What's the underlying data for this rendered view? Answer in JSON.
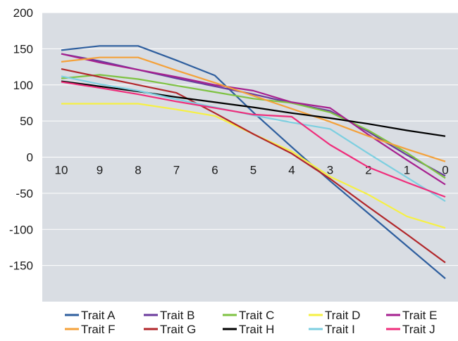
{
  "chart_data": {
    "type": "line",
    "title": "",
    "xlabel": "",
    "ylabel": "",
    "x": [
      10,
      9,
      8,
      7,
      6,
      5,
      4,
      3,
      2,
      1,
      0
    ],
    "ylim": [
      -200,
      200
    ],
    "yticks": [
      200,
      150,
      100,
      50,
      0,
      -50,
      -100,
      -150
    ],
    "grid": true,
    "background": "#d9dde3",
    "legend_position": "bottom",
    "series": [
      {
        "name": "Trait A",
        "color": "#2e5e9e",
        "values": [
          148,
          154,
          154,
          134,
          113,
          62,
          14,
          -33,
          -78,
          -123,
          -168
        ]
      },
      {
        "name": "Trait B",
        "color": "#6a3a9c",
        "values": [
          143,
          133,
          121,
          109,
          98,
          87,
          75,
          64,
          35,
          3,
          -26
        ]
      },
      {
        "name": "Trait C",
        "color": "#7ec242",
        "values": [
          109,
          114,
          108,
          99,
          90,
          81,
          75,
          62,
          37,
          6,
          -29
        ]
      },
      {
        "name": "Trait D",
        "color": "#f6f043",
        "values": [
          74,
          74,
          74,
          66,
          57,
          32,
          8,
          -27,
          -52,
          -82,
          -98
        ]
      },
      {
        "name": "Trait E",
        "color": "#a6208f",
        "values": [
          143,
          131,
          121,
          111,
          100,
          92,
          76,
          68,
          31,
          -4,
          -38
        ]
      },
      {
        "name": "Trait F",
        "color": "#f4a13a",
        "values": [
          132,
          138,
          138,
          120,
          103,
          85,
          67,
          49,
          29,
          11,
          -6
        ]
      },
      {
        "name": "Trait G",
        "color": "#b1262a",
        "values": [
          122,
          111,
          100,
          89,
          61,
          32,
          5,
          -30,
          -69,
          -107,
          -146
        ]
      },
      {
        "name": "Trait H",
        "color": "#000000",
        "values": [
          105,
          98,
          91,
          83,
          76,
          69,
          61,
          54,
          46,
          37,
          29
        ]
      },
      {
        "name": "Trait I",
        "color": "#7dcfe0",
        "values": [
          112,
          101,
          92,
          80,
          69,
          58,
          48,
          39,
          5,
          -28,
          -61
        ]
      },
      {
        "name": "Trait J",
        "color": "#ef2d7b",
        "values": [
          104,
          96,
          87,
          77,
          68,
          59,
          56,
          17,
          -14,
          -35,
          -55
        ]
      }
    ]
  }
}
